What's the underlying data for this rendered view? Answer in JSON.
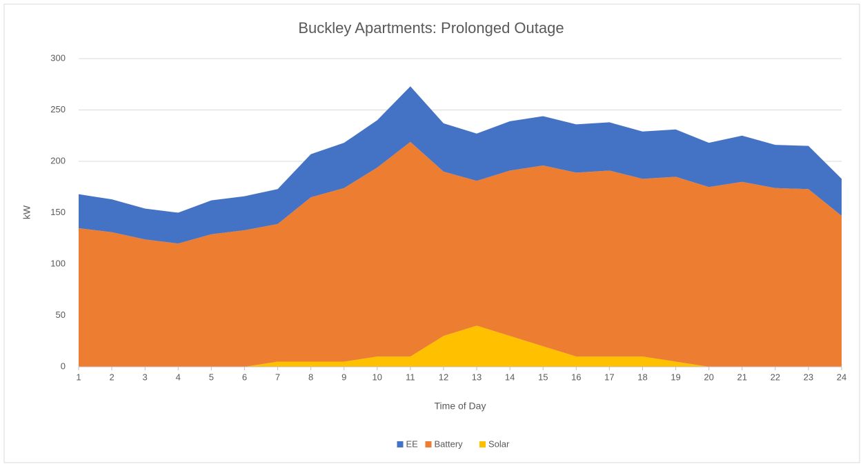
{
  "chart_data": {
    "type": "stacked_area",
    "title": "Buckley Apartments: Prolonged Outage",
    "x_label": "Time of Day",
    "y_label": "kW",
    "categories": [
      "1",
      "2",
      "3",
      "4",
      "5",
      "6",
      "7",
      "8",
      "9",
      "10",
      "11",
      "12",
      "13",
      "14",
      "15",
      "16",
      "17",
      "18",
      "19",
      "20",
      "21",
      "22",
      "23",
      "24"
    ],
    "series": [
      {
        "name": "EE",
        "color": "#4472c4",
        "values": [
          33,
          32,
          30,
          30,
          33,
          33,
          34,
          42,
          44,
          46,
          54,
          47,
          46,
          48,
          48,
          47,
          47,
          46,
          46,
          43,
          45,
          42,
          42,
          36
        ]
      },
      {
        "name": "Battery",
        "color": "#ed7d31",
        "values": [
          135,
          131,
          124,
          120,
          129,
          133,
          134,
          160,
          169,
          184,
          209,
          160,
          141,
          161,
          176,
          179,
          181,
          173,
          180,
          175,
          180,
          174,
          173,
          147
        ]
      },
      {
        "name": "Solar",
        "color": "#ffc000",
        "values": [
          0,
          0,
          0,
          0,
          0,
          0,
          5,
          5,
          5,
          10,
          10,
          30,
          40,
          30,
          20,
          10,
          10,
          10,
          5,
          0,
          0,
          0,
          0,
          0
        ]
      }
    ],
    "ylim": [
      0,
      300
    ],
    "yticks": [
      0,
      50,
      100,
      150,
      200,
      250,
      300
    ],
    "grid": true,
    "legend": "bottom"
  }
}
